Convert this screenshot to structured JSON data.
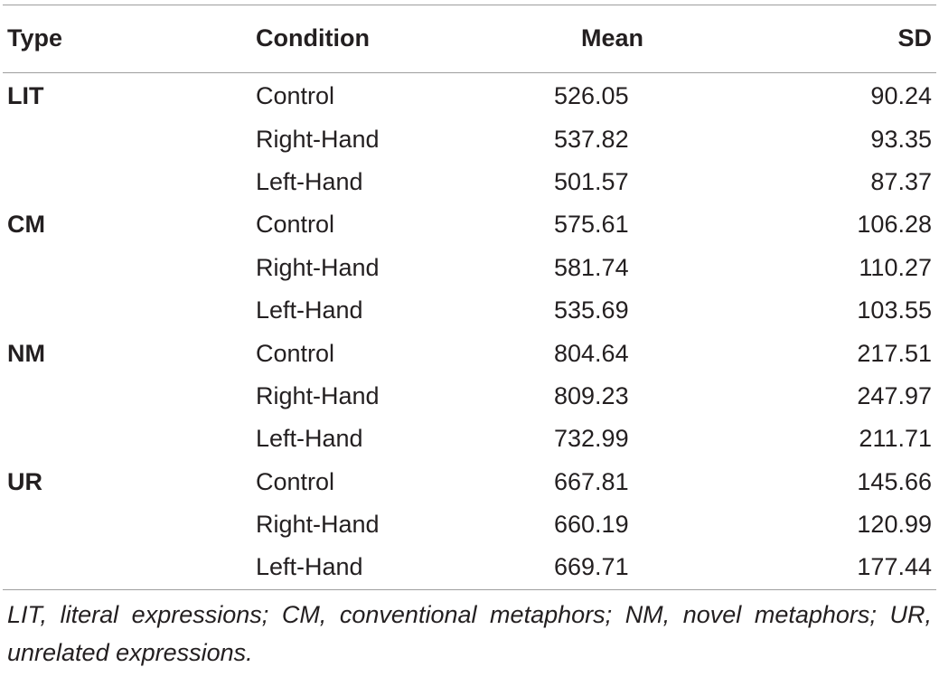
{
  "table": {
    "headers": {
      "type": "Type",
      "condition": "Condition",
      "mean": "Mean",
      "sd": "SD"
    },
    "rows": [
      {
        "type": "LIT",
        "condition": "Control",
        "mean": "526.05",
        "sd": "90.24"
      },
      {
        "type": "",
        "condition": "Right-Hand",
        "mean": "537.82",
        "sd": "93.35"
      },
      {
        "type": "",
        "condition": "Left-Hand",
        "mean": "501.57",
        "sd": "87.37"
      },
      {
        "type": "CM",
        "condition": "Control",
        "mean": "575.61",
        "sd": "106.28"
      },
      {
        "type": "",
        "condition": "Right-Hand",
        "mean": "581.74",
        "sd": "110.27"
      },
      {
        "type": "",
        "condition": "Left-Hand",
        "mean": "535.69",
        "sd": "103.55"
      },
      {
        "type": "NM",
        "condition": "Control",
        "mean": "804.64",
        "sd": "217.51"
      },
      {
        "type": "",
        "condition": "Right-Hand",
        "mean": "809.23",
        "sd": "247.97"
      },
      {
        "type": "",
        "condition": "Left-Hand",
        "mean": "732.99",
        "sd": "211.71"
      },
      {
        "type": "UR",
        "condition": "Control",
        "mean": "667.81",
        "sd": "145.66"
      },
      {
        "type": "",
        "condition": "Right-Hand",
        "mean": "660.19",
        "sd": "120.99"
      },
      {
        "type": "",
        "condition": "Left-Hand",
        "mean": "669.71",
        "sd": "177.44"
      }
    ],
    "footnote": "LIT, literal expressions; CM, conventional metaphors; NM, novel metaphors; UR, unrelated expressions."
  }
}
